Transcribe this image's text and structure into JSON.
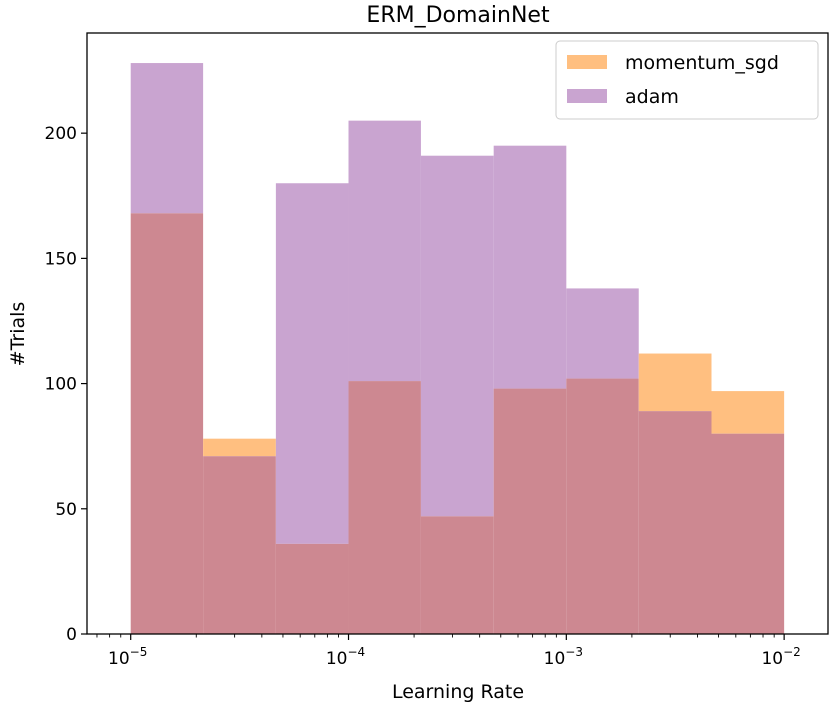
{
  "chart_data": {
    "type": "bar",
    "title": "ERM_DomainNet",
    "xlabel": "Learning Rate",
    "ylabel": "#Trials",
    "xscale": "log",
    "xlim": [
      6.3e-06,
      0.0159
    ],
    "ylim": [
      0,
      240
    ],
    "bin_edges": [
      1e-05,
      2.15e-05,
      4.64e-05,
      0.0001,
      0.000215,
      0.000464,
      0.001,
      0.00215,
      0.00464,
      0.01
    ],
    "x_ticks": [
      {
        "value": 1e-05,
        "base": "10",
        "exp": "−5"
      },
      {
        "value": 0.0001,
        "base": "10",
        "exp": "−4"
      },
      {
        "value": 0.001,
        "base": "10",
        "exp": "−3"
      },
      {
        "value": 0.01,
        "base": "10",
        "exp": "−2"
      }
    ],
    "y_ticks": [
      {
        "value": 0,
        "label": "0"
      },
      {
        "value": 50,
        "label": "50"
      },
      {
        "value": 100,
        "label": "100"
      },
      {
        "value": 150,
        "label": "150"
      },
      {
        "value": 200,
        "label": "200"
      }
    ],
    "series": [
      {
        "name": "momentum_sgd",
        "color": "#ffbf80",
        "values": [
          168,
          78,
          36,
          101,
          47,
          98,
          102,
          112,
          97
        ]
      },
      {
        "name": "adam",
        "color": "#c9a4d0",
        "values": [
          228,
          71,
          180,
          205,
          191,
          195,
          138,
          89,
          80
        ]
      }
    ],
    "overlap_color": "#cd8891",
    "legend_position": "top-right",
    "grid": false
  }
}
